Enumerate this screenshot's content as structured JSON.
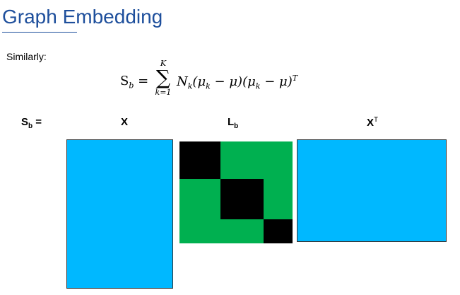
{
  "title": "Graph Embedding",
  "intro": "Similarly:",
  "formula": {
    "lhs": "S",
    "lhs_sub": "b",
    "equals": " = ",
    "sum_upper": "K",
    "sum_symbol": "∑",
    "sum_lower": "k=1",
    "rhs_main": "N",
    "rhs_sub_k": "k",
    "rhs_term": "(μ",
    "rhs_term2": " − μ)(μ",
    "rhs_term3": " − μ)",
    "rhs_sup": "T"
  },
  "labels": {
    "sb": "S",
    "sb_sub": "b",
    "sb_equals": " =",
    "x": "X",
    "lb": "L",
    "lb_sub": "b",
    "xt": "X",
    "xt_sup": "T"
  },
  "colors": {
    "title": "#1e4f9c",
    "matrix_fill": "#00b8ff",
    "lb_background": "#00b050",
    "lb_blocks": "#000000"
  }
}
